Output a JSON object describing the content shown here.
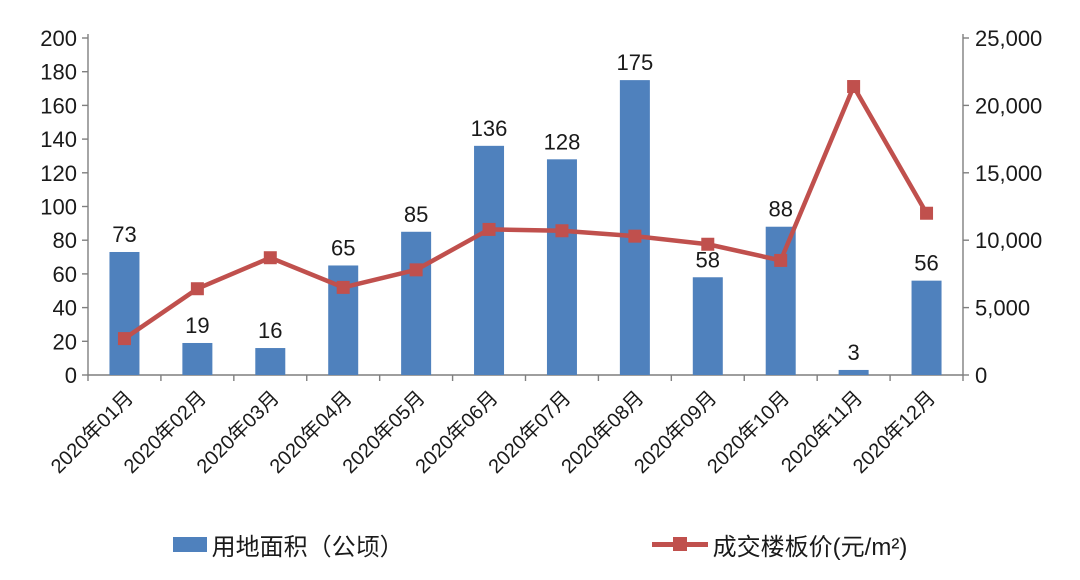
{
  "chart_data": {
    "type": "bar",
    "subtype": "bar-line-combo",
    "title": "",
    "xlabel": "",
    "ylabel": "",
    "grid": false,
    "legend_position": "bottom",
    "categories": [
      "2020年01月",
      "2020年02月",
      "2020年03月",
      "2020年04月",
      "2020年05月",
      "2020年06月",
      "2020年07月",
      "2020年08月",
      "2020年09月",
      "2020年10月",
      "2020年11月",
      "2020年12月"
    ],
    "series": [
      {
        "name": "用地面积（公顷）",
        "type": "bar",
        "axis": "left",
        "color": "#4F81BD",
        "values": [
          73,
          19,
          16,
          65,
          85,
          136,
          128,
          175,
          58,
          88,
          3,
          56
        ],
        "data_labels": [
          "73",
          "19",
          "16",
          "65",
          "85",
          "136",
          "128",
          "175",
          "58",
          "88",
          "3",
          "56"
        ]
      },
      {
        "name": "成交楼板价(元/m²)",
        "type": "line",
        "axis": "right",
        "color": "#C0504D",
        "values": [
          2700,
          6400,
          8700,
          6500,
          7800,
          10800,
          10700,
          10300,
          9700,
          8500,
          21400,
          12000
        ]
      }
    ],
    "left_axis": {
      "min": 0,
      "max": 200,
      "step": 20,
      "tick_labels": [
        "0",
        "20",
        "40",
        "60",
        "80",
        "100",
        "120",
        "140",
        "160",
        "180",
        "200"
      ]
    },
    "right_axis": {
      "min": 0,
      "max": 25000,
      "step": 5000,
      "tick_labels": [
        "0",
        "5,000",
        "10,000",
        "15,000",
        "20,000",
        "25,000"
      ]
    }
  },
  "colors": {
    "bar": "#4F81BD",
    "line": "#C0504D",
    "axis": "#7f7f7f",
    "text": "#1a1a1a",
    "background": "#ffffff"
  }
}
